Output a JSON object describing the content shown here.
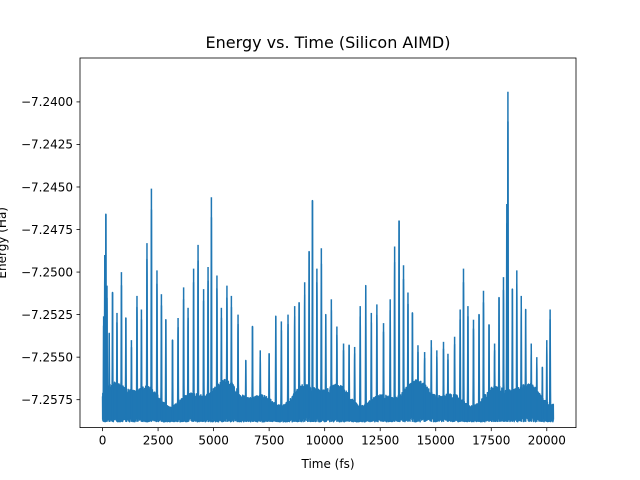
{
  "chart_data": {
    "type": "line",
    "title": "Energy vs. Time (Silicon AIMD)",
    "xlabel": "Time (fs)",
    "ylabel": "Energy (Ha)",
    "xlim": [
      -1015,
      21315
    ],
    "ylim": [
      -7.25914,
      -7.23742
    ],
    "xticks": [
      0,
      2500,
      5000,
      7500,
      10000,
      12500,
      15000,
      17500,
      20000
    ],
    "xtick_labels": [
      "0",
      "2500",
      "5000",
      "7500",
      "10000",
      "12500",
      "15000",
      "17500",
      "20000"
    ],
    "yticks": [
      -7.24,
      -7.2425,
      -7.245,
      -7.2475,
      -7.25,
      -7.2525,
      -7.255,
      -7.2575
    ],
    "ytick_labels": [
      "−7.2400",
      "−7.2425",
      "−7.2450",
      "−7.2475",
      "−7.2500",
      "−7.2525",
      "−7.2550",
      "−7.2575"
    ],
    "color": "#1f77b4",
    "x_range": [
      0,
      20300
    ],
    "baseline": -7.2588,
    "series": [
      {
        "name": "Energy",
        "peaks": [
          {
            "x": 50,
            "y": -7.2526
          },
          {
            "x": 100,
            "y": -7.249
          },
          {
            "x": 150,
            "y": -7.2466
          },
          {
            "x": 200,
            "y": -7.2508
          },
          {
            "x": 300,
            "y": -7.2536
          },
          {
            "x": 450,
            "y": -7.2512
          },
          {
            "x": 650,
            "y": -7.2524
          },
          {
            "x": 850,
            "y": -7.25
          },
          {
            "x": 1050,
            "y": -7.2527
          },
          {
            "x": 1300,
            "y": -7.254
          },
          {
            "x": 1550,
            "y": -7.2514
          },
          {
            "x": 1750,
            "y": -7.2522
          },
          {
            "x": 2000,
            "y": -7.2483
          },
          {
            "x": 2200,
            "y": -7.2451
          },
          {
            "x": 2450,
            "y": -7.2499
          },
          {
            "x": 2650,
            "y": -7.2513
          },
          {
            "x": 2850,
            "y": -7.2528
          },
          {
            "x": 3150,
            "y": -7.254
          },
          {
            "x": 3400,
            "y": -7.2527
          },
          {
            "x": 3650,
            "y": -7.2509
          },
          {
            "x": 3850,
            "y": -7.2521
          },
          {
            "x": 4100,
            "y": -7.2498
          },
          {
            "x": 4300,
            "y": -7.2484
          },
          {
            "x": 4550,
            "y": -7.251
          },
          {
            "x": 4750,
            "y": -7.2497
          },
          {
            "x": 4900,
            "y": -7.2456
          },
          {
            "x": 5150,
            "y": -7.2502
          },
          {
            "x": 5350,
            "y": -7.2521
          },
          {
            "x": 5600,
            "y": -7.2508
          },
          {
            "x": 5800,
            "y": -7.2514
          },
          {
            "x": 6100,
            "y": -7.2525
          },
          {
            "x": 6450,
            "y": -7.2552
          },
          {
            "x": 6750,
            "y": -7.2532
          },
          {
            "x": 7100,
            "y": -7.2546
          },
          {
            "x": 7500,
            "y": -7.2548
          },
          {
            "x": 7800,
            "y": -7.2526
          },
          {
            "x": 8050,
            "y": -7.2529
          },
          {
            "x": 8350,
            "y": -7.2525
          },
          {
            "x": 8650,
            "y": -7.252
          },
          {
            "x": 8850,
            "y": -7.2518
          },
          {
            "x": 9100,
            "y": -7.2506
          },
          {
            "x": 9300,
            "y": -7.2488
          },
          {
            "x": 9450,
            "y": -7.2458
          },
          {
            "x": 9650,
            "y": -7.2498
          },
          {
            "x": 9850,
            "y": -7.2486
          },
          {
            "x": 10050,
            "y": -7.2525
          },
          {
            "x": 10300,
            "y": -7.2516
          },
          {
            "x": 10550,
            "y": -7.2532
          },
          {
            "x": 10850,
            "y": -7.2542
          },
          {
            "x": 11100,
            "y": -7.2543
          },
          {
            "x": 11350,
            "y": -7.2544
          },
          {
            "x": 11600,
            "y": -7.252
          },
          {
            "x": 11850,
            "y": -7.2508
          },
          {
            "x": 12100,
            "y": -7.2524
          },
          {
            "x": 12350,
            "y": -7.2519
          },
          {
            "x": 12650,
            "y": -7.253
          },
          {
            "x": 12950,
            "y": -7.2516
          },
          {
            "x": 13150,
            "y": -7.2485
          },
          {
            "x": 13350,
            "y": -7.247
          },
          {
            "x": 13550,
            "y": -7.2496
          },
          {
            "x": 13750,
            "y": -7.2512
          },
          {
            "x": 13950,
            "y": -7.2524
          },
          {
            "x": 14200,
            "y": -7.2543
          },
          {
            "x": 14500,
            "y": -7.2547
          },
          {
            "x": 14800,
            "y": -7.254
          },
          {
            "x": 15050,
            "y": -7.2546
          },
          {
            "x": 15350,
            "y": -7.2541
          },
          {
            "x": 15550,
            "y": -7.2548
          },
          {
            "x": 15850,
            "y": -7.2538
          },
          {
            "x": 16100,
            "y": -7.2522
          },
          {
            "x": 16250,
            "y": -7.2498
          },
          {
            "x": 16450,
            "y": -7.252
          },
          {
            "x": 16700,
            "y": -7.2528
          },
          {
            "x": 16950,
            "y": -7.2525
          },
          {
            "x": 17150,
            "y": -7.2511
          },
          {
            "x": 17400,
            "y": -7.2531
          },
          {
            "x": 17650,
            "y": -7.2542
          },
          {
            "x": 17850,
            "y": -7.2515
          },
          {
            "x": 18050,
            "y": -7.2503
          },
          {
            "x": 18200,
            "y": -7.246
          },
          {
            "x": 18250,
            "y": -7.2394
          },
          {
            "x": 18450,
            "y": -7.251
          },
          {
            "x": 18650,
            "y": -7.2499
          },
          {
            "x": 18850,
            "y": -7.2514
          },
          {
            "x": 19050,
            "y": -7.2522
          },
          {
            "x": 19300,
            "y": -7.2542
          },
          {
            "x": 19550,
            "y": -7.255
          },
          {
            "x": 19800,
            "y": -7.2556
          },
          {
            "x": 20000,
            "y": -7.254
          },
          {
            "x": 20150,
            "y": -7.2522
          }
        ]
      }
    ]
  }
}
